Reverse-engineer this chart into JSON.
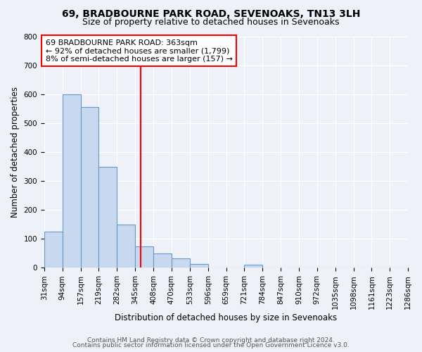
{
  "title1": "69, BRADBOURNE PARK ROAD, SEVENOAKS, TN13 3LH",
  "title2": "Size of property relative to detached houses in Sevenoaks",
  "xlabel": "Distribution of detached houses by size in Sevenoaks",
  "ylabel": "Number of detached properties",
  "bin_edges": [
    31,
    94,
    157,
    219,
    282,
    345,
    408,
    470,
    533,
    596,
    659,
    721,
    784,
    847,
    910,
    972,
    1035,
    1098,
    1161,
    1223,
    1286
  ],
  "bin_labels": [
    "31sqm",
    "94sqm",
    "157sqm",
    "219sqm",
    "282sqm",
    "345sqm",
    "408sqm",
    "470sqm",
    "533sqm",
    "596sqm",
    "659sqm",
    "721sqm",
    "784sqm",
    "847sqm",
    "910sqm",
    "972sqm",
    "1035sqm",
    "1098sqm",
    "1161sqm",
    "1223sqm",
    "1286sqm"
  ],
  "bar_heights": [
    125,
    600,
    555,
    350,
    150,
    75,
    50,
    33,
    13,
    0,
    0,
    10,
    0,
    0,
    0,
    0,
    0,
    0,
    0,
    0
  ],
  "bar_color": "#c8d8ee",
  "bar_edge_color": "#6699cc",
  "property_value": 363,
  "vline_color": "red",
  "annotation_line1": "69 BRADBOURNE PARK ROAD: 363sqm",
  "annotation_line2": "← 92% of detached houses are smaller (1,799)",
  "annotation_line3": "8% of semi-detached houses are larger (157) →",
  "annotation_box_color": "white",
  "annotation_box_edge_color": "red",
  "ylim": [
    0,
    800
  ],
  "yticks": [
    0,
    100,
    200,
    300,
    400,
    500,
    600,
    700,
    800
  ],
  "footer1": "Contains HM Land Registry data © Crown copyright and database right 2024.",
  "footer2": "Contains public sector information licensed under the Open Government Licence v3.0.",
  "bg_color": "#eef2f8",
  "grid_color": "#ffffff",
  "title_fontsize": 10,
  "subtitle_fontsize": 9,
  "axis_label_fontsize": 8.5,
  "tick_fontsize": 7.5,
  "annotation_fontsize": 8,
  "footer_fontsize": 6.5
}
